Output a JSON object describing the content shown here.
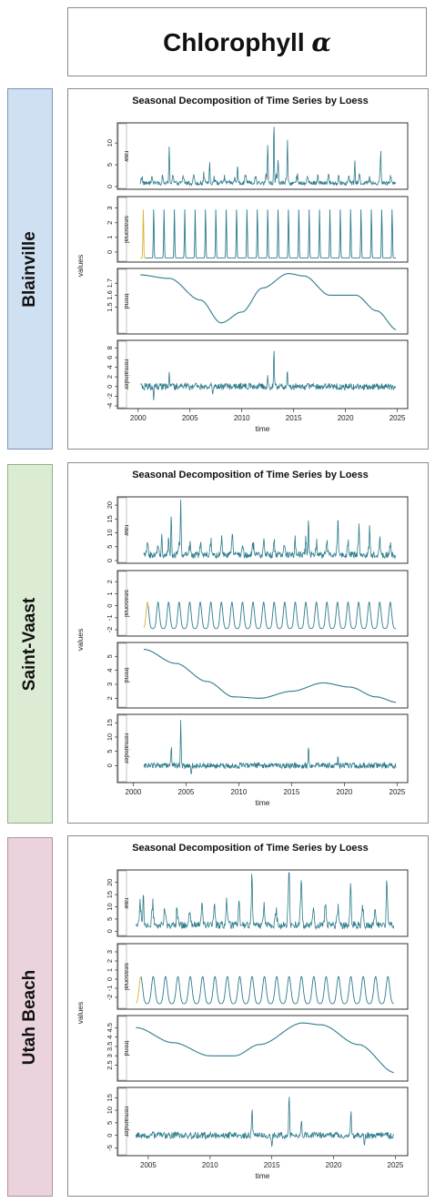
{
  "header": {
    "title_prefix": "Chlorophyll",
    "title_symbol": "α"
  },
  "colors": {
    "line": "#2e7c8c",
    "seasonal_start": "#d9b13a",
    "frame": "#333333",
    "blainville_bg": "#cfe0f3",
    "saintvaast_bg": "#dcecd4",
    "utah_bg": "#ead3dc"
  },
  "chart_data": [
    {
      "type": "line",
      "site": "Blainville",
      "title": "Seasonal Decomposition of Time Series by Loess",
      "xlabel": "time",
      "ylabel": "values",
      "start": 2000.2,
      "end": 2024.9,
      "xlim": [
        1998,
        2026
      ],
      "xticks": [
        2000,
        2005,
        2010,
        2015,
        2020,
        2025
      ],
      "grid": false,
      "components": [
        {
          "name": "raw",
          "ylim": [
            0,
            14
          ],
          "yticks": [
            0,
            5,
            10
          ],
          "base": 0.8,
          "amp": 1.6,
          "noise": 0.5,
          "floor": 0.05,
          "spikes": [
            [
              2003.0,
              8.5
            ],
            [
              2006.9,
              5.0
            ],
            [
              2009.6,
              4.2
            ],
            [
              2012.5,
              8.8
            ],
            [
              2013.1,
              14.0
            ],
            [
              2013.5,
              5.5
            ],
            [
              2014.4,
              8.2
            ],
            [
              2020.9,
              5.0
            ],
            [
              2023.4,
              6.5
            ]
          ]
        },
        {
          "name": "seasonal",
          "ylim": [
            -0.5,
            3.6
          ],
          "yticks": [
            0,
            1,
            2,
            3
          ],
          "amp": 3.4,
          "peak_phase": 0.5,
          "width": 0.035,
          "offset": -0.4,
          "first_color_years": 0.5
        },
        {
          "name": "trend",
          "ylim": [
            1.3,
            1.8
          ],
          "yticks": [
            1.5,
            1.6,
            1.7
          ],
          "knots": [
            [
              2000,
              1.77
            ],
            [
              2003,
              1.74
            ],
            [
              2006,
              1.56
            ],
            [
              2008,
              1.37
            ],
            [
              2010,
              1.46
            ],
            [
              2012,
              1.66
            ],
            [
              2014.5,
              1.78
            ],
            [
              2016,
              1.76
            ],
            [
              2018.5,
              1.6
            ],
            [
              2021,
              1.6
            ],
            [
              2023,
              1.47
            ],
            [
              2025,
              1.31
            ]
          ]
        },
        {
          "name": "remainder",
          "ylim": [
            -4,
            9
          ],
          "yticks": [
            -4,
            -2,
            0,
            2,
            4,
            6,
            8
          ],
          "noise": 0.7,
          "spikes": [
            [
              2003.0,
              2.5
            ],
            [
              2013.1,
              8.3
            ],
            [
              2012.5,
              2.6
            ],
            [
              2014.4,
              3.5
            ],
            [
              2007.2,
              -2.2
            ],
            [
              2001.5,
              -2.8
            ]
          ]
        }
      ]
    },
    {
      "type": "line",
      "site": "Saint-Vaast",
      "title": "Seasonal Decomposition of Time Series by Loess",
      "xlabel": "time",
      "ylabel": "values",
      "start": 2001.0,
      "end": 2024.9,
      "xlim": [
        1998.5,
        2026
      ],
      "xticks": [
        2000,
        2005,
        2010,
        2015,
        2020,
        2025
      ],
      "grid": false,
      "components": [
        {
          "name": "raw",
          "ylim": [
            0,
            22
          ],
          "yticks": [
            0,
            5,
            10,
            15,
            20
          ],
          "base": 2.0,
          "amp": 4.5,
          "noise": 1.2,
          "floor": 0.2,
          "spikes": [
            [
              2002.7,
              9.0
            ],
            [
              2003.6,
              15.0
            ],
            [
              2004.5,
              21.5
            ],
            [
              2009.4,
              6.0
            ],
            [
              2016.6,
              13.0
            ],
            [
              2019.4,
              10.0
            ],
            [
              2021.4,
              8.5
            ],
            [
              2022.4,
              6.5
            ]
          ]
        },
        {
          "name": "seasonal",
          "ylim": [
            -2.3,
            2.7
          ],
          "yticks": [
            -2,
            -1,
            0,
            1,
            2
          ],
          "amp": 2.2,
          "peak_phase": 0.35,
          "width": 0.13,
          "offset": -1.9,
          "first_color_years": 0.4
        },
        {
          "name": "trend",
          "ylim": [
            1.5,
            5.8
          ],
          "yticks": [
            2,
            3,
            4,
            5
          ],
          "knots": [
            [
              2001,
              5.5
            ],
            [
              2004,
              4.5
            ],
            [
              2007,
              3.2
            ],
            [
              2009.5,
              2.1
            ],
            [
              2012,
              2.0
            ],
            [
              2015,
              2.5
            ],
            [
              2018,
              3.1
            ],
            [
              2020.5,
              2.8
            ],
            [
              2023,
              2.1
            ],
            [
              2025,
              1.7
            ]
          ]
        },
        {
          "name": "remainder",
          "ylim": [
            -5,
            17
          ],
          "yticks": [
            0,
            5,
            10,
            15
          ],
          "noise": 1.0,
          "spikes": [
            [
              2004.5,
              15.0
            ],
            [
              2003.6,
              7.0
            ],
            [
              2016.6,
              8.0
            ],
            [
              2019.4,
              4.0
            ],
            [
              2005.5,
              -3.5
            ]
          ]
        }
      ]
    },
    {
      "type": "line",
      "site": "Utah Beach",
      "title": "Seasonal Decomposition of Time Series by Loess",
      "xlabel": "time",
      "ylabel": "values",
      "start": 2004.0,
      "end": 2024.9,
      "xlim": [
        2002.5,
        2026
      ],
      "xticks": [
        2005,
        2010,
        2015,
        2020,
        2025
      ],
      "grid": false,
      "components": [
        {
          "name": "raw",
          "ylim": [
            -1,
            24
          ],
          "yticks": [
            0,
            5,
            10,
            15,
            20
          ],
          "base": 2.5,
          "amp": 7.0,
          "noise": 1.5,
          "floor": 0.3,
          "spikes": [
            [
              2004.6,
              15.0
            ],
            [
              2013.4,
              17.0
            ],
            [
              2016.4,
              23.5
            ],
            [
              2017.4,
              13.5
            ],
            [
              2021.4,
              12.5
            ],
            [
              2024.3,
              14.0
            ]
          ]
        },
        {
          "name": "seasonal",
          "ylim": [
            -3,
            3.6
          ],
          "yticks": [
            -2,
            -1,
            0,
            1,
            2,
            3
          ],
          "amp": 3.0,
          "peak_phase": 0.4,
          "width": 0.14,
          "offset": -2.7,
          "first_color_years": 0.4
        },
        {
          "name": "trend",
          "ylim": [
            1.8,
            5.0
          ],
          "yticks": [
            2.5,
            3.0,
            3.5,
            4.0,
            4.5
          ],
          "knots": [
            [
              2004,
              4.5
            ],
            [
              2007,
              3.7
            ],
            [
              2010,
              3.0
            ],
            [
              2012,
              3.0
            ],
            [
              2014,
              3.6
            ],
            [
              2017.5,
              4.75
            ],
            [
              2019,
              4.65
            ],
            [
              2022,
              3.6
            ],
            [
              2025,
              2.1
            ]
          ]
        },
        {
          "name": "remainder",
          "ylim": [
            -7,
            18
          ],
          "yticks": [
            -5,
            0,
            5,
            10,
            15
          ],
          "noise": 1.3,
          "spikes": [
            [
              2016.4,
              16.0
            ],
            [
              2013.4,
              12.0
            ],
            [
              2021.4,
              10.0
            ],
            [
              2017.4,
              6.0
            ],
            [
              2015.0,
              -5.0
            ],
            [
              2022.5,
              -4.5
            ]
          ]
        }
      ]
    }
  ]
}
